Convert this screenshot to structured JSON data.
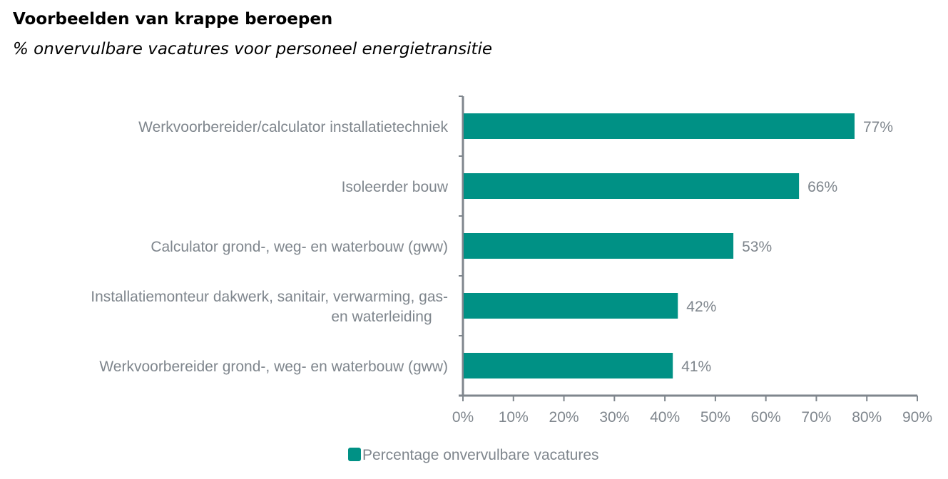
{
  "chart_data": {
    "type": "bar",
    "orientation": "horizontal",
    "title": "Voorbeelden van krappe beroepen",
    "subtitle": "% onvervulbare vacatures voor personeel energietransitie",
    "categories": [
      [
        "Werkvoorbereider/calculator installatietechniek"
      ],
      [
        "Isoleerder bouw"
      ],
      [
        "Calculator grond-, weg- en waterbouw (gww)"
      ],
      [
        "Installatiemonteur dakwerk, sanitair, verwarming, gas-",
        "en waterleiding"
      ],
      [
        "Werkvoorbereider grond-, weg- en waterbouw (gww)"
      ]
    ],
    "series": [
      {
        "name": "Percentage onvervulbare vacatures",
        "values": [
          77,
          66,
          53,
          42,
          41
        ],
        "color": "#009185"
      }
    ],
    "data_labels": [
      "77%",
      "66%",
      "53%",
      "42%",
      "41%"
    ],
    "xlim": [
      0,
      90
    ],
    "xticks": [
      "0%",
      "10%",
      "20%",
      "30%",
      "40%",
      "50%",
      "60%",
      "70%",
      "80%",
      "90%"
    ],
    "grid": false,
    "legend_position": "bottom",
    "axis_color": "#7f868d"
  }
}
